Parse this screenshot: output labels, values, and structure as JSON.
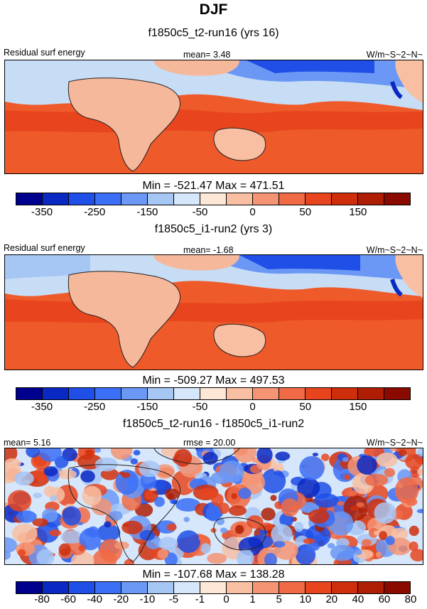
{
  "title": "DJF",
  "colors": {
    "scale": [
      "#00008e",
      "#0a28c2",
      "#1f4fe6",
      "#3b6ff6",
      "#6b98f5",
      "#a6c6f4",
      "#d6e6fb",
      "#fde7d6",
      "#f8bfa3",
      "#f59473",
      "#f06a45",
      "#e8451f",
      "#cf2e0c",
      "#ad1e05",
      "#8a0a00"
    ],
    "land": "#f6b89a",
    "ocean_warm": "#ee5a2a",
    "ocean_cool": "#c7dcf5"
  },
  "panels": [
    {
      "title": "f1850c5_t2-run16 (yrs 16)",
      "left_label": "Residual surf energy",
      "center_label": "mean=   3.48",
      "right_label": "W/m~S~2~N~",
      "minmax": "Min = -521.47 Max = 471.51",
      "ticks": [
        "-350",
        "-250",
        "-150",
        "-50",
        "0",
        "50",
        "150"
      ]
    },
    {
      "title": "f1850c5_i1-run2 (yrs 3)",
      "left_label": "Residual surf energy",
      "center_label": "mean=  -1.68",
      "right_label": "W/m~S~2~N~",
      "minmax": "Min = -509.27 Max = 497.53",
      "ticks": [
        "-350",
        "-250",
        "-150",
        "-50",
        "0",
        "50",
        "150"
      ]
    },
    {
      "title": "f1850c5_t2-run16 - f1850c5_i1-run2",
      "left_label": "mean=   5.16",
      "center_label": "rmse =  20.00",
      "right_label": "W/m~S~2~N~",
      "minmax": "Min = -107.68 Max = 138.28",
      "ticks": [
        "-80",
        "-60",
        "-40",
        "-20",
        "-10",
        "-5",
        "-1",
        "0",
        "1",
        "5",
        "10",
        "20",
        "40",
        "60",
        "80"
      ]
    }
  ]
}
